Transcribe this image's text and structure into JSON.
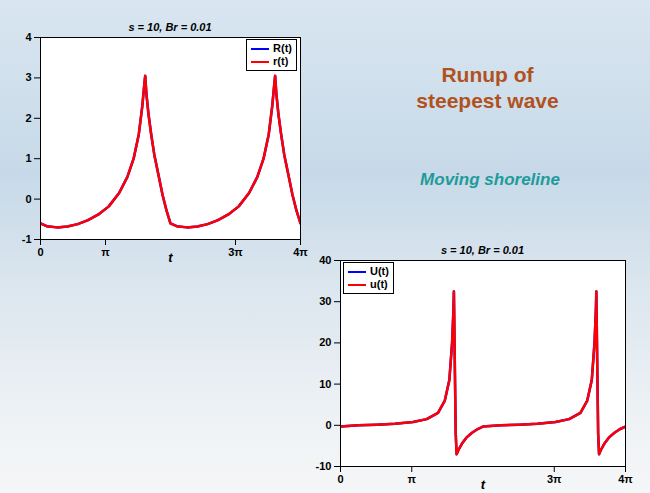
{
  "slide": {
    "heading": "Runup of steepest wave",
    "subheading": "Moving shoreline"
  },
  "chart_data": [
    {
      "type": "line",
      "title": "s = 10, Br = 0.01",
      "x_label": "t",
      "xlim": [
        0,
        12.566
      ],
      "xticks": [
        0,
        {
          "value": 3.1416,
          "label": "π"
        },
        {
          "value": 9.4248,
          "label": "3π"
        },
        {
          "value": 12.566,
          "label": "4π"
        }
      ],
      "ylim": [
        -1,
        4
      ],
      "yticks": [
        -1,
        0,
        1,
        2,
        3,
        4
      ],
      "legend": "upper right",
      "x": [
        0,
        0.3,
        0.8,
        1.3,
        1.8,
        2.3,
        2.8,
        3.3,
        3.8,
        4.2,
        4.5,
        4.75,
        4.92,
        5.02,
        5.06,
        5.12,
        5.22,
        5.35,
        5.5,
        5.7,
        5.9,
        6.1,
        6.28,
        6.58,
        7.08,
        7.58,
        8.08,
        8.58,
        9.08,
        9.58,
        10.08,
        10.48,
        10.78,
        11.03,
        11.2,
        11.3,
        11.34,
        11.4,
        11.5,
        11.63,
        11.78,
        11.98,
        12.18,
        12.38,
        12.566
      ],
      "series": [
        {
          "name": "R(t)",
          "color": "#0000ff",
          "values": [
            -0.6,
            -0.67,
            -0.7,
            -0.68,
            -0.62,
            -0.52,
            -0.38,
            -0.18,
            0.15,
            0.55,
            1.0,
            1.6,
            2.3,
            2.85,
            3.05,
            2.6,
            2.1,
            1.6,
            1.1,
            0.6,
            0.1,
            -0.3,
            -0.6,
            -0.67,
            -0.7,
            -0.68,
            -0.62,
            -0.52,
            -0.38,
            -0.18,
            0.15,
            0.55,
            1.0,
            1.6,
            2.3,
            2.85,
            3.05,
            2.6,
            2.1,
            1.6,
            1.1,
            0.6,
            0.1,
            -0.3,
            -0.6
          ]
        },
        {
          "name": "r(t)",
          "color": "#ff0000",
          "values": [
            -0.6,
            -0.67,
            -0.7,
            -0.68,
            -0.62,
            -0.52,
            -0.38,
            -0.18,
            0.15,
            0.55,
            1.0,
            1.6,
            2.3,
            2.85,
            3.05,
            2.6,
            2.1,
            1.6,
            1.1,
            0.6,
            0.1,
            -0.3,
            -0.6,
            -0.67,
            -0.7,
            -0.68,
            -0.62,
            -0.52,
            -0.38,
            -0.18,
            0.15,
            0.55,
            1.0,
            1.6,
            2.3,
            2.85,
            3.05,
            2.6,
            2.1,
            1.6,
            1.1,
            0.6,
            0.1,
            -0.3,
            -0.6
          ]
        }
      ]
    },
    {
      "type": "line",
      "title": "s = 10, Br = 0.01",
      "x_label": "t",
      "xlim": [
        0,
        12.566
      ],
      "xticks": [
        0,
        {
          "value": 3.1416,
          "label": "π"
        },
        {
          "value": 9.4248,
          "label": "3π"
        },
        {
          "value": 12.566,
          "label": "4π"
        }
      ],
      "ylim": [
        -10,
        40
      ],
      "yticks": [
        -10,
        0,
        10,
        20,
        30,
        40
      ],
      "legend": "upper left",
      "x": [
        0,
        0.8,
        1.6,
        2.4,
        3.2,
        3.8,
        4.3,
        4.6,
        4.8,
        4.92,
        4.98,
        5.0,
        5.04,
        5.08,
        5.12,
        5.2,
        5.35,
        5.55,
        5.8,
        6.05,
        6.28,
        7.08,
        7.88,
        8.68,
        9.48,
        10.08,
        10.58,
        10.88,
        11.08,
        11.2,
        11.26,
        11.28,
        11.32,
        11.36,
        11.4,
        11.48,
        11.63,
        11.83,
        12.08,
        12.33,
        12.566
      ],
      "series": [
        {
          "name": "U(t)",
          "color": "#0000ff",
          "values": [
            -0.3,
            0,
            0.15,
            0.35,
            0.8,
            1.5,
            3,
            6,
            11,
            20,
            28,
            32.5,
            15,
            -2,
            -7,
            -6,
            -4.5,
            -3,
            -1.8,
            -0.9,
            -0.3,
            0,
            0.15,
            0.35,
            0.8,
            1.5,
            3,
            6,
            11,
            20,
            28,
            32.5,
            15,
            -2,
            -7,
            -6,
            -4.5,
            -3,
            -1.8,
            -0.9,
            -0.3
          ]
        },
        {
          "name": "u(t)",
          "color": "#ff0000",
          "values": [
            -0.3,
            0,
            0.15,
            0.35,
            0.8,
            1.5,
            3,
            6,
            11,
            20,
            28,
            32.5,
            15,
            -2,
            -7,
            -6,
            -4.5,
            -3,
            -1.8,
            -0.9,
            -0.3,
            0,
            0.15,
            0.35,
            0.8,
            1.5,
            3,
            6,
            11,
            20,
            28,
            32.5,
            15,
            -2,
            -7,
            -6,
            -4.5,
            -3,
            -1.8,
            -0.9,
            -0.3
          ]
        }
      ]
    }
  ]
}
